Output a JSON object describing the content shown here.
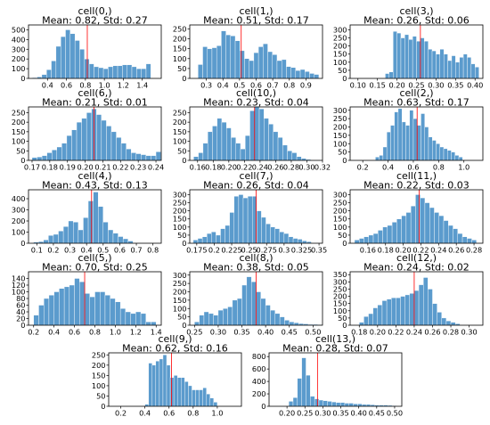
{
  "colors": {
    "bar": "#5b9bcd",
    "mean_line": "#ff0000"
  },
  "chart_data": [
    {
      "type": "bar",
      "title": "cell(0,)",
      "subtitle": "Mean: 0.82, Std: 0.27",
      "xlim": [
        0.2,
        1.6
      ],
      "ylim": [
        0,
        550
      ],
      "xticks": [
        0.4,
        0.6,
        0.8,
        1.0,
        1.2,
        1.4
      ],
      "xtick_labels": [
        "0.4",
        "0.6",
        "0.8",
        "1.0",
        "1.2",
        "1.4"
      ],
      "yticks": [
        0,
        100,
        200,
        300,
        400,
        500
      ],
      "mean": 0.82,
      "x_start": 0.24,
      "bin_width": 0.05,
      "values": [
        8,
        15,
        40,
        90,
        180,
        330,
        430,
        500,
        460,
        390,
        300,
        200,
        150,
        120,
        110,
        100,
        120,
        130,
        130,
        140,
        140,
        120,
        100,
        100,
        150
      ]
    },
    {
      "type": "bar",
      "title": "cell(1,)",
      "subtitle": "Mean: 0.51, Std: 0.17",
      "xlim": [
        0.2,
        1.0
      ],
      "ylim": [
        0,
        270
      ],
      "xticks": [
        0.3,
        0.4,
        0.5,
        0.6,
        0.7,
        0.8,
        0.9
      ],
      "xtick_labels": [
        "0.3",
        "0.4",
        "0.5",
        "0.6",
        "0.7",
        "0.8",
        "0.9"
      ],
      "yticks": [
        0,
        50,
        100,
        150,
        200,
        250
      ],
      "mean": 0.51,
      "x_start": 0.25,
      "bin_width": 0.028,
      "values": [
        70,
        160,
        150,
        155,
        165,
        240,
        220,
        215,
        190,
        140,
        100,
        90,
        130,
        160,
        175,
        135,
        120,
        90,
        95,
        60,
        55,
        40,
        45,
        35,
        25,
        20
      ]
    },
    {
      "type": "bar",
      "title": "cell(3,)",
      "subtitle": "Mean: 0.26, Std: 0.06",
      "xlim": [
        0.08,
        0.42
      ],
      "ylim": [
        0,
        330
      ],
      "xticks": [
        0.1,
        0.15,
        0.2,
        0.25,
        0.3,
        0.35,
        0.4
      ],
      "xtick_labels": [
        "0.10",
        "0.15",
        "0.20",
        "0.25",
        "0.30",
        "0.35",
        "0.40"
      ],
      "yticks": [
        0,
        50,
        100,
        150,
        200,
        250,
        300
      ],
      "mean": 0.26,
      "x_start": 0.17,
      "bin_width": 0.01,
      "values": [
        30,
        40,
        290,
        280,
        250,
        270,
        240,
        260,
        230,
        250,
        230,
        180,
        170,
        150,
        180,
        150,
        110,
        140,
        100,
        130,
        150,
        130,
        90,
        70
      ]
    },
    {
      "type": "bar",
      "title": "cell(6,)",
      "subtitle": "Mean: 0.21, Std: 0.01",
      "xlim": [
        0.168,
        0.243
      ],
      "ylim": [
        0,
        280
      ],
      "xticks": [
        0.17,
        0.18,
        0.19,
        0.2,
        0.21,
        0.22,
        0.23,
        0.24
      ],
      "xtick_labels": [
        "0.17",
        "0.18",
        "0.19",
        "0.20",
        "0.21",
        "0.22",
        "0.23",
        "0.24"
      ],
      "yticks": [
        0,
        50,
        100,
        150,
        200,
        250
      ],
      "mean": 0.205,
      "x_start": 0.17,
      "bin_width": 0.0028,
      "values": [
        15,
        18,
        25,
        40,
        55,
        70,
        90,
        130,
        160,
        200,
        220,
        250,
        270,
        240,
        210,
        180,
        150,
        120,
        90,
        60,
        40,
        35,
        30,
        25,
        25,
        45
      ]
    },
    {
      "type": "bar",
      "title": "cell(10,)",
      "subtitle": "Mean: 0.23, Std: 0.04",
      "xlim": [
        0.15,
        0.32
      ],
      "ylim": [
        0,
        280
      ],
      "xticks": [
        0.16,
        0.18,
        0.2,
        0.22,
        0.24,
        0.26,
        0.28,
        0.3,
        0.32
      ],
      "xtick_labels": [
        "0.16",
        "0.18",
        "0.20",
        "0.22",
        "0.24",
        "0.26",
        "0.28",
        "0.30",
        "0.32"
      ],
      "yticks": [
        0,
        50,
        100,
        150,
        200,
        250
      ],
      "mean": 0.233,
      "x_start": 0.155,
      "bin_width": 0.006,
      "values": [
        20,
        40,
        90,
        150,
        180,
        220,
        200,
        170,
        120,
        90,
        60,
        130,
        260,
        280,
        270,
        220,
        190,
        150,
        120,
        80,
        50,
        40,
        20,
        10,
        5
      ]
    },
    {
      "type": "bar",
      "title": "cell(2,)",
      "subtitle": "Mean: 0.63, Std: 0.17",
      "xlim": [
        0.1,
        1.15
      ],
      "ylim": [
        0,
        320
      ],
      "xticks": [
        0.2,
        0.4,
        0.6,
        0.8,
        1.0
      ],
      "xtick_labels": [
        "0.2",
        "0.4",
        "0.6",
        "0.8",
        "1.0"
      ],
      "yticks": [
        0,
        50,
        100,
        150,
        200,
        250,
        300
      ],
      "mean": 0.63,
      "x_start": 0.3,
      "bin_width": 0.03,
      "values": [
        20,
        30,
        80,
        170,
        210,
        290,
        310,
        230,
        210,
        300,
        250,
        210,
        280,
        200,
        140,
        120,
        100,
        80,
        70,
        60,
        50,
        30,
        20
      ]
    },
    {
      "type": "bar",
      "title": "cell(4,)",
      "subtitle": "Mean: 0.43, Std: 0.13",
      "xlim": [
        0.05,
        0.85
      ],
      "ylim": [
        0,
        480
      ],
      "xticks": [
        0.1,
        0.2,
        0.3,
        0.4,
        0.5,
        0.6,
        0.7,
        0.8
      ],
      "xtick_labels": [
        "0.1",
        "0.2",
        "0.3",
        "0.4",
        "0.5",
        "0.6",
        "0.7",
        "0.8"
      ],
      "yticks": [
        0,
        100,
        200,
        300,
        400
      ],
      "mean": 0.43,
      "x_start": 0.08,
      "bin_width": 0.03,
      "values": [
        10,
        15,
        30,
        70,
        80,
        110,
        150,
        200,
        190,
        120,
        230,
        380,
        460,
        330,
        190,
        120,
        90,
        60,
        40,
        20
      ]
    },
    {
      "type": "bar",
      "title": "cell(7,)",
      "subtitle": "Mean: 0.26, Std: 0.04",
      "xlim": [
        0.165,
        0.355
      ],
      "ylim": [
        0,
        330
      ],
      "xticks": [
        0.175,
        0.2,
        0.225,
        0.25,
        0.275,
        0.3,
        0.325,
        0.35
      ],
      "xtick_labels": [
        "0.175",
        "0.2",
        "0.225",
        "0.25",
        "0.275",
        "0.3",
        "0.325",
        "0.35"
      ],
      "yticks": [
        0,
        50,
        100,
        150,
        200,
        250,
        300
      ],
      "mean": 0.26,
      "x_start": 0.17,
      "bin_width": 0.0065,
      "values": [
        20,
        30,
        40,
        60,
        70,
        50,
        90,
        110,
        190,
        290,
        300,
        280,
        290,
        290,
        200,
        160,
        120,
        100,
        90,
        70,
        60,
        40,
        30,
        25,
        15,
        10
      ]
    },
    {
      "type": "bar",
      "title": "cell(11,)",
      "subtitle": "Mean: 0.22, Std: 0.03",
      "xlim": [
        0.14,
        0.29
      ],
      "ylim": [
        0,
        330
      ],
      "xticks": [
        0.16,
        0.18,
        0.2,
        0.22,
        0.24,
        0.26,
        0.28
      ],
      "xtick_labels": [
        "0.16",
        "0.18",
        "0.20",
        "0.22",
        "0.24",
        "0.26",
        "0.28"
      ],
      "yticks": [
        0,
        50,
        100,
        150,
        200,
        250,
        300
      ],
      "mean": 0.218,
      "x_start": 0.145,
      "bin_width": 0.0053,
      "values": [
        20,
        30,
        40,
        50,
        60,
        80,
        100,
        110,
        130,
        150,
        170,
        190,
        230,
        300,
        280,
        250,
        220,
        190,
        170,
        140,
        110,
        90,
        60,
        40,
        30,
        20
      ]
    },
    {
      "type": "bar",
      "title": "cell(5,)",
      "subtitle": "Mean: 0.70, Std: 0.25",
      "xlim": [
        0.15,
        1.45
      ],
      "ylim": [
        0,
        160
      ],
      "xticks": [
        0.2,
        0.4,
        0.6,
        0.8,
        1.0,
        1.2,
        1.4
      ],
      "xtick_labels": [
        "0.2",
        "0.4",
        "0.6",
        "0.8",
        "1.0",
        "1.2",
        "1.4"
      ],
      "yticks": [
        0,
        20,
        40,
        60,
        80,
        100,
        120,
        140
      ],
      "mean": 0.7,
      "x_start": 0.2,
      "bin_width": 0.05,
      "values": [
        30,
        60,
        80,
        90,
        100,
        110,
        115,
        120,
        140,
        130,
        95,
        85,
        100,
        100,
        90,
        80,
        70,
        50,
        40,
        35,
        40,
        35,
        10,
        10
      ]
    },
    {
      "type": "bar",
      "title": "cell(8,)",
      "subtitle": "Mean: 0.38, Std: 0.05",
      "xlim": [
        0.24,
        0.52
      ],
      "ylim": [
        0,
        320
      ],
      "xticks": [
        0.25,
        0.3,
        0.35,
        0.4,
        0.45,
        0.5
      ],
      "xtick_labels": [
        "0.25",
        "0.30",
        "0.35",
        "0.40",
        "0.45",
        "0.50"
      ],
      "yticks": [
        0,
        50,
        100,
        150,
        200,
        250,
        300
      ],
      "mean": 0.38,
      "x_start": 0.25,
      "bin_width": 0.01,
      "values": [
        20,
        60,
        80,
        70,
        60,
        90,
        100,
        110,
        150,
        160,
        240,
        290,
        260,
        200,
        160,
        120,
        90,
        70,
        50,
        30,
        20,
        15,
        10,
        8,
        5,
        5,
        3
      ]
    },
    {
      "type": "bar",
      "title": "cell(12,)",
      "subtitle": "Mean: 0.24, Std: 0.02",
      "xlim": [
        0.17,
        0.315
      ],
      "ylim": [
        0,
        370
      ],
      "xticks": [
        0.18,
        0.2,
        0.22,
        0.24,
        0.26,
        0.28,
        0.3
      ],
      "xtick_labels": [
        "0.18",
        "0.20",
        "0.22",
        "0.24",
        "0.26",
        "0.28",
        "0.30"
      ],
      "yticks": [
        0,
        50,
        100,
        150,
        200,
        250,
        300,
        350
      ],
      "mean": 0.24,
      "x_start": 0.18,
      "bin_width": 0.005,
      "values": [
        20,
        60,
        80,
        120,
        140,
        170,
        180,
        190,
        190,
        200,
        210,
        220,
        240,
        280,
        330,
        250,
        150,
        90,
        50,
        30,
        20,
        10
      ]
    },
    {
      "type": "bar",
      "title": "cell(9,)",
      "subtitle": "Mean: 0.62, Std: 0.16",
      "xlim": [
        0.1,
        1.2
      ],
      "ylim": [
        0,
        260
      ],
      "xticks": [
        0.2,
        0.4,
        0.6,
        0.8,
        1.0
      ],
      "xtick_labels": [
        "0.2",
        "0.4",
        "0.6",
        "0.8",
        "1.0"
      ],
      "yticks": [
        0,
        50,
        100,
        150,
        200,
        250
      ],
      "mean": 0.62,
      "x_start": 0.4,
      "bin_width": 0.03,
      "values": [
        10,
        210,
        200,
        220,
        230,
        250,
        200,
        140,
        150,
        140,
        140,
        120,
        100,
        80,
        80,
        80,
        90,
        60,
        40,
        20
      ]
    },
    {
      "type": "bar",
      "title": "cell(13,)",
      "subtitle": "Mean: 0.28, Std: 0.07",
      "xlim": [
        0.15,
        0.52
      ],
      "ylim": [
        0,
        860
      ],
      "xticks": [
        0.2,
        0.25,
        0.3,
        0.35,
        0.4,
        0.45,
        0.5
      ],
      "xtick_labels": [
        "0.20",
        "0.25",
        "0.30",
        "0.35",
        "0.40",
        "0.45",
        "0.50"
      ],
      "yticks": [
        0,
        200,
        400,
        600,
        800
      ],
      "mean": 0.285,
      "x_start": 0.205,
      "bin_width": 0.012,
      "values": [
        80,
        140,
        450,
        780,
        500,
        160,
        120,
        100,
        90,
        80,
        70,
        60,
        60,
        50,
        50,
        40,
        40,
        30,
        30,
        25,
        20,
        20,
        20,
        15,
        10
      ]
    }
  ]
}
